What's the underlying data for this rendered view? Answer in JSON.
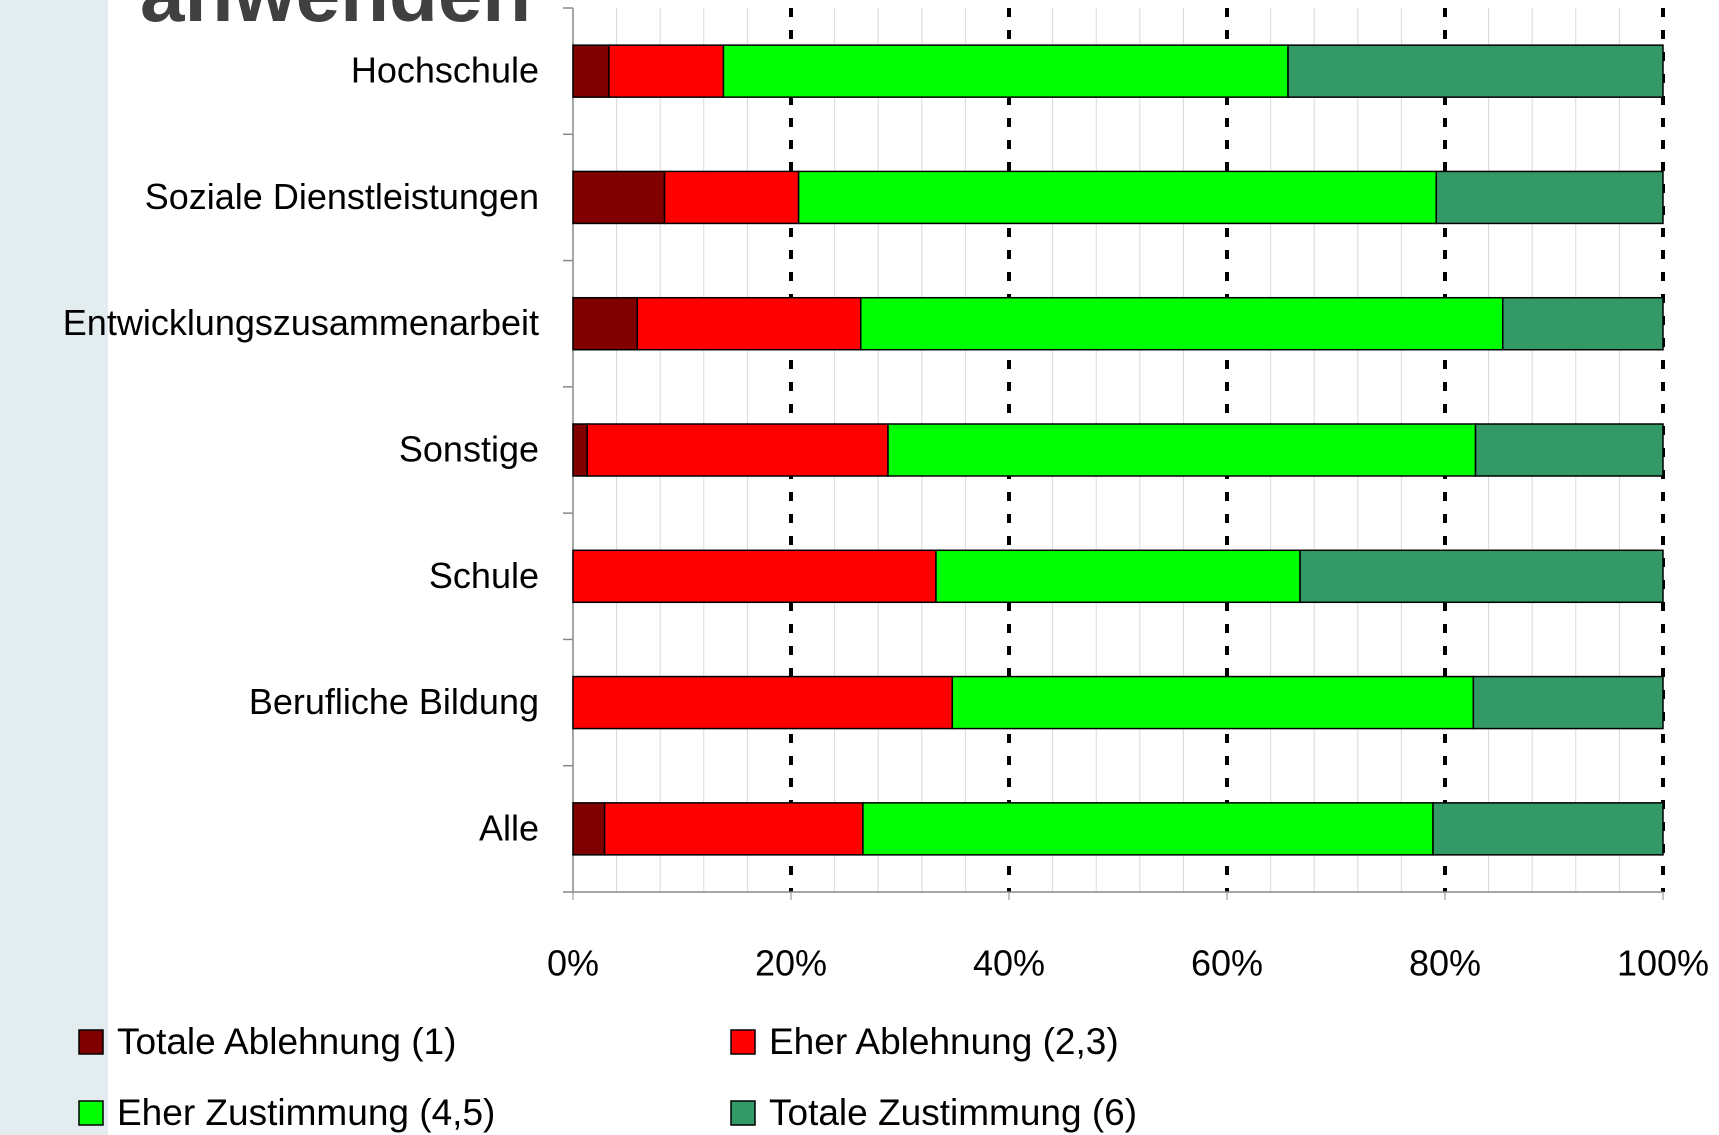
{
  "chart_data": {
    "type": "stacked_barh",
    "title": "anwenden",
    "categories": [
      "Hochschule",
      "Soziale Dienstleistungen",
      "Entwicklungszusammenarbeit",
      "Sonstige",
      "Schule",
      "Berufliche Bildung",
      "Alle"
    ],
    "series": [
      {
        "name": "Totale Ablehnung (1)",
        "color": "#800000",
        "values": [
          3.3,
          8.4,
          5.9,
          1.3,
          0,
          0,
          2.9
        ]
      },
      {
        "name": "Eher Ablehnung (2,3)",
        "color": "#ff0000",
        "values": [
          10.5,
          12.3,
          20.5,
          27.6,
          33.3,
          34.8,
          23.7
        ]
      },
      {
        "name": "Eher Zustimmung (4,5)",
        "color": "#00ff00",
        "values": [
          51.8,
          58.5,
          58.9,
          53.9,
          33.4,
          47.8,
          52.3
        ]
      },
      {
        "name": "Totale Zustimmung (6)",
        "color": "#339966",
        "values": [
          34.4,
          20.8,
          14.7,
          17.2,
          33.3,
          17.4,
          21.1
        ]
      }
    ],
    "xlim": [
      0,
      100
    ],
    "xticks": [
      {
        "value": 0,
        "label": "0%"
      },
      {
        "value": 20,
        "label": "20%"
      },
      {
        "value": 40,
        "label": "40%"
      },
      {
        "value": 60,
        "label": "60%"
      },
      {
        "value": 80,
        "label": "80%"
      },
      {
        "value": 100,
        "label": "100%"
      }
    ],
    "x_minor_ticks": [
      4,
      8,
      12,
      16,
      24,
      28,
      32,
      36,
      44,
      48,
      52,
      56,
      64,
      68,
      72,
      76,
      84,
      88,
      92,
      96
    ],
    "grid": true
  }
}
